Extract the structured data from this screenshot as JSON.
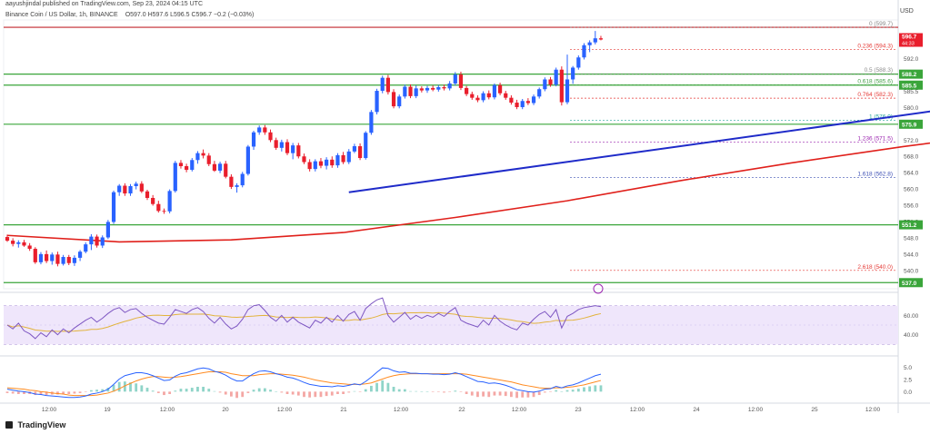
{
  "header": {
    "author_line": "aayushjindal published on TradingView.com, Sep 23, 2024 04:15 UTC",
    "symbol_line": "Binance Coin / US Dollar, 1h, BINANCE",
    "ohlc_line": "O597.0  H597.6  L596.5  C596.7  −0.2 (−0.03%)",
    "currency": "USD"
  },
  "footer": {
    "brand": "TradingView"
  },
  "colors": {
    "up": "#2962ff",
    "down": "#e91e2c",
    "sma": "#e0201b",
    "trendline": "#1f2bc9",
    "hline": "#3aa53a",
    "resistance": "#c2272d",
    "rsi": "#7e57c2",
    "rsi_ma": "#e2b33c",
    "macd": "#2962ff",
    "macd_signal": "#ff8a1f"
  },
  "chart_data": {
    "type": "candlestick",
    "yticks": [
      537.0,
      540.0,
      544.0,
      548.0,
      552.0,
      556.0,
      560.0,
      564.0,
      568.0,
      572.0,
      576.0,
      580.0,
      584.0,
      588.0,
      592.0,
      596.0
    ],
    "ytick_labels": [
      "537.0",
      "540.0",
      "544.0",
      "548.0",
      "551.2",
      "556.0",
      "560.0",
      "564.0",
      "568.0",
      "572.0",
      "575.9",
      "580.0",
      "585.5",
      "588.2",
      "592.0",
      "596.0"
    ],
    "ylim": [
      535.5,
      601.5
    ],
    "xtick_labels": [
      "12:00",
      "19",
      "12:00",
      "20",
      "12:00",
      "21",
      "12:00",
      "22",
      "12:00",
      "23",
      "12:00",
      "24",
      "12:00",
      "25",
      "12:00"
    ],
    "price_badge": {
      "value": "596.7",
      "sub": "44:33",
      "price": 596.7
    },
    "horizontal_lines": [
      {
        "label": "588.2",
        "value": 588.2
      },
      {
        "label": "585.5",
        "value": 585.5
      },
      {
        "label": "575.9",
        "value": 575.9
      },
      {
        "label": "551.2",
        "value": 551.2
      },
      {
        "label": "537.0",
        "value": 537.0
      }
    ],
    "resistance_line": 599.7,
    "fib_levels": [
      {
        "ratio": "0",
        "value": "599.7",
        "price": 599.7
      },
      {
        "ratio": "0.236",
        "value": "594.3",
        "price": 594.3
      },
      {
        "ratio": "0.5",
        "value": "588.3",
        "price": 588.3
      },
      {
        "ratio": "0.618",
        "value": "585.6",
        "price": 585.6
      },
      {
        "ratio": "0.764",
        "value": "582.3",
        "price": 582.3
      },
      {
        "ratio": "1",
        "value": "576.9",
        "price": 576.9
      },
      {
        "ratio": "1.236",
        "value": "571.5",
        "price": 571.5
      },
      {
        "ratio": "1.618",
        "value": "562.8",
        "price": 562.8
      },
      {
        "ratio": "2.618",
        "value": "540.0",
        "price": 540.0
      }
    ],
    "candles": [
      [
        548.2,
        548.8,
        547.0,
        547.3
      ],
      [
        547.3,
        547.9,
        545.9,
        546.5
      ],
      [
        546.5,
        547.4,
        545.6,
        546.9
      ],
      [
        546.9,
        547.5,
        545.8,
        546.1
      ],
      [
        546.1,
        546.7,
        544.8,
        545.3
      ],
      [
        545.3,
        545.7,
        541.6,
        542.0
      ],
      [
        542.0,
        544.5,
        541.5,
        544.0
      ],
      [
        544.0,
        544.9,
        541.8,
        542.3
      ],
      [
        542.3,
        544.4,
        541.4,
        543.9
      ],
      [
        543.9,
        544.6,
        541.0,
        541.6
      ],
      [
        541.6,
        543.8,
        541.2,
        543.3
      ],
      [
        543.3,
        543.8,
        541.3,
        541.8
      ],
      [
        541.8,
        543.7,
        541.1,
        543.1
      ],
      [
        543.1,
        545.0,
        542.3,
        544.6
      ],
      [
        544.6,
        546.9,
        544.2,
        546.4
      ],
      [
        546.4,
        548.9,
        545.0,
        548.3
      ],
      [
        548.3,
        548.8,
        545.6,
        546.1
      ],
      [
        546.1,
        548.6,
        545.5,
        548.1
      ],
      [
        548.1,
        552.4,
        547.7,
        551.9
      ],
      [
        551.9,
        559.6,
        551.4,
        559.2
      ],
      [
        559.2,
        561.2,
        558.3,
        560.8
      ],
      [
        560.8,
        561.4,
        558.3,
        558.9
      ],
      [
        558.9,
        561.2,
        558.3,
        560.7
      ],
      [
        560.7,
        561.8,
        559.9,
        561.3
      ],
      [
        561.3,
        561.9,
        559.0,
        559.4
      ],
      [
        559.4,
        559.8,
        557.3,
        557.8
      ],
      [
        557.8,
        558.5,
        555.9,
        556.3
      ],
      [
        556.3,
        557.1,
        554.2,
        554.6
      ],
      [
        554.6,
        555.2,
        553.9,
        554.5
      ],
      [
        554.5,
        559.9,
        554.0,
        559.5
      ],
      [
        559.5,
        566.9,
        559.1,
        566.4
      ],
      [
        566.4,
        567.1,
        565.0,
        565.6
      ],
      [
        565.6,
        566.2,
        564.1,
        564.7
      ],
      [
        564.7,
        567.6,
        564.3,
        567.1
      ],
      [
        567.1,
        569.3,
        566.2,
        568.8
      ],
      [
        568.8,
        569.7,
        567.5,
        568.2
      ],
      [
        568.2,
        568.8,
        565.6,
        566.1
      ],
      [
        566.1,
        566.9,
        564.2,
        564.5
      ],
      [
        564.5,
        566.7,
        563.9,
        566.2
      ],
      [
        566.2,
        566.9,
        562.6,
        563.0
      ],
      [
        563.0,
        563.6,
        560.0,
        560.5
      ],
      [
        560.5,
        561.4,
        559.1,
        560.9
      ],
      [
        560.9,
        564.2,
        560.4,
        563.7
      ],
      [
        563.7,
        570.8,
        563.3,
        570.4
      ],
      [
        570.4,
        574.3,
        569.6,
        573.9
      ],
      [
        573.9,
        575.6,
        573.3,
        575.1
      ],
      [
        575.1,
        575.7,
        573.3,
        573.9
      ],
      [
        573.9,
        574.6,
        571.5,
        572.0
      ],
      [
        572.0,
        572.6,
        569.6,
        570.1
      ],
      [
        570.1,
        572.1,
        569.2,
        571.5
      ],
      [
        571.5,
        572.2,
        568.3,
        568.8
      ],
      [
        568.8,
        571.3,
        567.3,
        570.7
      ],
      [
        570.7,
        571.3,
        567.5,
        568.0
      ],
      [
        568.0,
        568.7,
        566.1,
        566.6
      ],
      [
        566.6,
        567.3,
        564.3,
        564.9
      ],
      [
        564.9,
        567.3,
        564.3,
        566.8
      ],
      [
        566.8,
        567.6,
        565.1,
        565.7
      ],
      [
        565.7,
        567.8,
        564.8,
        567.2
      ],
      [
        567.2,
        568.0,
        565.2,
        565.8
      ],
      [
        565.8,
        568.8,
        565.2,
        568.3
      ],
      [
        568.3,
        569.1,
        566.1,
        566.6
      ],
      [
        566.6,
        569.8,
        566.1,
        569.2
      ],
      [
        569.2,
        571.1,
        568.8,
        570.5
      ],
      [
        570.5,
        571.2,
        567.1,
        567.6
      ],
      [
        567.6,
        574.2,
        567.2,
        573.8
      ],
      [
        573.8,
        579.4,
        573.3,
        578.9
      ],
      [
        578.9,
        584.6,
        578.3,
        584.1
      ],
      [
        584.1,
        587.8,
        583.5,
        587.3
      ],
      [
        587.3,
        588.0,
        583.2,
        583.8
      ],
      [
        583.8,
        584.5,
        579.8,
        580.3
      ],
      [
        580.3,
        583.2,
        579.8,
        582.7
      ],
      [
        582.7,
        585.6,
        582.2,
        585.1
      ],
      [
        585.1,
        585.7,
        582.3,
        582.8
      ],
      [
        582.8,
        585.4,
        582.3,
        584.7
      ],
      [
        584.7,
        585.2,
        583.7,
        584.2
      ],
      [
        584.2,
        585.3,
        583.6,
        584.8
      ],
      [
        584.8,
        585.4,
        584.0,
        584.4
      ],
      [
        584.4,
        585.5,
        583.9,
        585.0
      ],
      [
        585.0,
        585.6,
        584.2,
        584.7
      ],
      [
        584.7,
        586.5,
        584.2,
        585.9
      ],
      [
        585.9,
        588.7,
        585.4,
        588.1
      ],
      [
        588.1,
        588.8,
        584.3,
        584.8
      ],
      [
        584.8,
        585.3,
        582.8,
        583.3
      ],
      [
        583.3,
        583.9,
        581.9,
        582.4
      ],
      [
        582.4,
        583.0,
        581.3,
        581.8
      ],
      [
        581.8,
        584.0,
        581.3,
        583.5
      ],
      [
        583.5,
        584.2,
        582.0,
        582.5
      ],
      [
        582.5,
        585.9,
        582.0,
        585.5
      ],
      [
        585.5,
        586.1,
        583.0,
        583.5
      ],
      [
        583.5,
        584.1,
        581.9,
        582.4
      ],
      [
        582.4,
        583.0,
        580.7,
        581.2
      ],
      [
        581.2,
        581.9,
        579.6,
        580.1
      ],
      [
        580.1,
        582.1,
        579.6,
        581.6
      ],
      [
        581.6,
        582.3,
        580.6,
        581.1
      ],
      [
        581.1,
        583.2,
        580.6,
        582.7
      ],
      [
        582.7,
        584.9,
        582.2,
        584.5
      ],
      [
        584.5,
        587.4,
        584.0,
        586.9
      ],
      [
        586.9,
        587.5,
        585.1,
        585.6
      ],
      [
        585.6,
        589.8,
        585.2,
        589.3
      ],
      [
        589.3,
        590.1,
        580.5,
        581.3
      ],
      [
        581.3,
        593.0,
        580.8,
        586.9
      ],
      [
        586.9,
        590.2,
        585.8,
        589.8
      ],
      [
        589.8,
        592.8,
        589.3,
        592.3
      ],
      [
        592.3,
        595.8,
        591.8,
        595.3
      ],
      [
        595.3,
        596.5,
        593.6,
        596.0
      ],
      [
        596.0,
        598.8,
        595.5,
        597.0
      ],
      [
        597.0,
        597.6,
        596.5,
        596.7
      ]
    ],
    "sma": [
      [
        0,
        548.6
      ],
      [
        20,
        547.0
      ],
      [
        40,
        547.5
      ],
      [
        60,
        549.3
      ],
      [
        80,
        553.0
      ],
      [
        100,
        557.1
      ],
      [
        120,
        562.0
      ],
      [
        140,
        566.4
      ],
      [
        160,
        570.4
      ],
      [
        182,
        574.4
      ]
    ],
    "trendline": [
      [
        61,
        559.2
      ],
      [
        206,
        586.9
      ]
    ],
    "rsi": {
      "range": [
        20,
        80
      ],
      "band": [
        30,
        70
      ],
      "ticks": [
        "60.00",
        "40.00"
      ],
      "tick_values": [
        60,
        40
      ],
      "values": [
        50,
        46,
        52,
        44,
        41,
        36,
        42,
        38,
        45,
        40,
        46,
        42,
        47,
        51,
        55,
        58,
        53,
        57,
        62,
        66,
        68,
        63,
        66,
        67,
        62,
        58,
        55,
        52,
        51,
        58,
        66,
        64,
        62,
        66,
        68,
        64,
        57,
        52,
        58,
        51,
        46,
        49,
        56,
        66,
        70,
        71,
        65,
        58,
        54,
        60,
        53,
        58,
        53,
        50,
        47,
        55,
        52,
        58,
        53,
        60,
        54,
        61,
        64,
        55,
        67,
        72,
        76,
        78,
        60,
        53,
        58,
        63,
        56,
        60,
        57,
        60,
        58,
        62,
        59,
        64,
        68,
        55,
        52,
        50,
        48,
        55,
        50,
        60,
        54,
        50,
        47,
        45,
        52,
        50,
        56,
        61,
        64,
        58,
        66,
        47,
        59,
        62,
        66,
        68,
        69,
        70,
        69
      ]
    },
    "macd": {
      "range": [
        -2,
        7
      ],
      "ticks": [
        "5.0",
        "2.5",
        "0.0"
      ],
      "tick_values": [
        5,
        2.5,
        0
      ],
      "macd": [
        0.5,
        0.3,
        0.1,
        0.0,
        -0.2,
        -0.5,
        -0.6,
        -0.8,
        -0.9,
        -1.0,
        -1.1,
        -1.2,
        -1.2,
        -1.1,
        -0.9,
        -0.5,
        -0.3,
        0.0,
        0.5,
        1.5,
        2.6,
        3.3,
        3.6,
        3.9,
        3.9,
        3.7,
        3.3,
        2.8,
        2.3,
        2.4,
        3.2,
        3.7,
        3.9,
        4.3,
        4.7,
        4.9,
        4.7,
        4.2,
        3.9,
        3.4,
        2.7,
        2.2,
        2.2,
        3.0,
        3.7,
        4.2,
        4.3,
        4.1,
        3.7,
        3.4,
        3.0,
        2.8,
        2.4,
        1.9,
        1.5,
        1.3,
        1.1,
        1.1,
        1.0,
        1.2,
        1.1,
        1.3,
        1.6,
        1.4,
        2.1,
        3.0,
        4.0,
        4.9,
        4.8,
        4.3,
        4.0,
        4.1,
        3.8,
        3.8,
        3.7,
        3.7,
        3.6,
        3.6,
        3.5,
        3.6,
        3.9,
        3.6,
        3.1,
        2.6,
        2.1,
        2.0,
        1.7,
        1.8,
        1.6,
        1.3,
        0.9,
        0.4,
        0.2,
        0.0,
        -0.1,
        0.1,
        0.5,
        0.6,
        1.1,
        0.8,
        1.2,
        1.4,
        1.8,
        2.3,
        2.8,
        3.3,
        3.6
      ],
      "signal": [
        0.8,
        0.7,
        0.6,
        0.5,
        0.3,
        0.2,
        0.0,
        -0.1,
        -0.3,
        -0.4,
        -0.5,
        -0.7,
        -0.8,
        -0.8,
        -0.8,
        -0.8,
        -0.7,
        -0.5,
        -0.3,
        0.1,
        0.6,
        1.2,
        1.7,
        2.2,
        2.6,
        2.9,
        3.1,
        3.1,
        3.0,
        2.9,
        3.0,
        3.1,
        3.3,
        3.5,
        3.7,
        3.9,
        4.1,
        4.1,
        4.1,
        4.0,
        3.7,
        3.5,
        3.3,
        3.3,
        3.3,
        3.5,
        3.6,
        3.7,
        3.7,
        3.6,
        3.5,
        3.4,
        3.2,
        3.0,
        2.7,
        2.4,
        2.2,
        2.0,
        1.8,
        1.7,
        1.6,
        1.5,
        1.5,
        1.5,
        1.6,
        1.8,
        2.2,
        2.6,
        3.0,
        3.3,
        3.5,
        3.6,
        3.7,
        3.7,
        3.7,
        3.7,
        3.7,
        3.7,
        3.7,
        3.7,
        3.7,
        3.7,
        3.6,
        3.4,
        3.2,
        3.0,
        2.8,
        2.6,
        2.4,
        2.2,
        2.0,
        1.7,
        1.4,
        1.2,
        1.0,
        0.8,
        0.7,
        0.7,
        0.8,
        0.8,
        0.9,
        1.0,
        1.2,
        1.4,
        1.7,
        2.0,
        2.3
      ]
    }
  }
}
